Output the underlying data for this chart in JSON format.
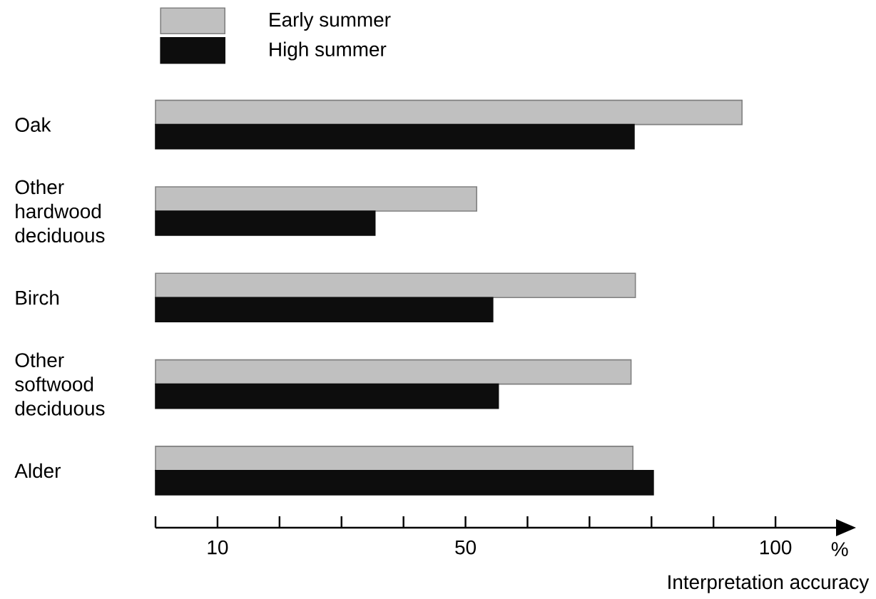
{
  "chart_data": {
    "type": "bar",
    "orientation": "horizontal",
    "xlabel": "Interpretation accuracy",
    "categories": [
      "Oak",
      "Other hardwood deciduous",
      "Birch",
      "Other softwood deciduous",
      "Alder"
    ],
    "series": [
      {
        "name": "Early summer",
        "color": "#c0c0c0",
        "values": [
          94.6,
          51.8,
          77.4,
          76.7,
          77.0
        ]
      },
      {
        "name": "High summer",
        "color": "#0d0d0d",
        "values": [
          77.2,
          35.4,
          54.4,
          55.3,
          80.3
        ]
      }
    ],
    "xlim": [
      0,
      110
    ],
    "xticks": [
      {
        "value": 0,
        "label": null
      },
      10,
      {
        "value": 20,
        "label": null
      },
      {
        "value": 30,
        "label": null
      },
      {
        "value": 40,
        "label": null
      },
      50,
      {
        "value": 60,
        "label": null
      },
      {
        "value": 70,
        "label": null
      },
      {
        "value": 80,
        "label": null
      },
      {
        "value": 90,
        "label": null
      },
      100
    ],
    "annotations": [
      "%"
    ],
    "legend": "top left",
    "grid": false
  }
}
